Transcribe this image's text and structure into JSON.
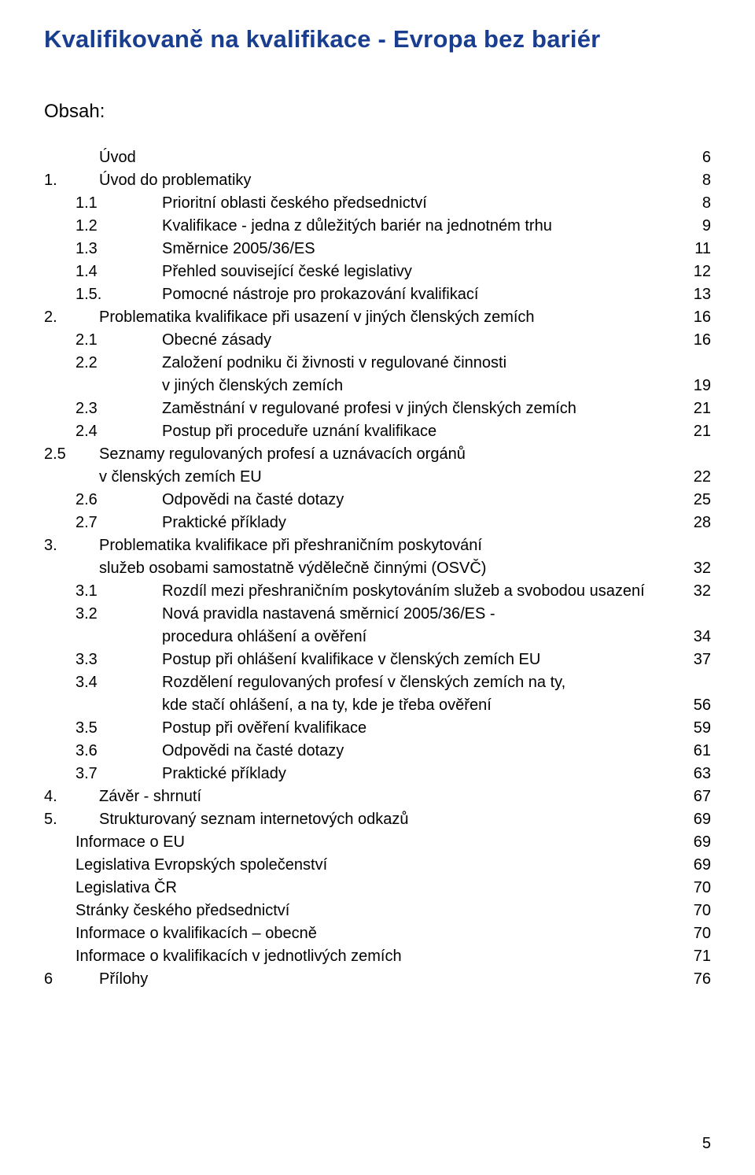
{
  "title": "Kvalifikovaně na kvalifikace - Evropa bez bariér",
  "obsah_label": "Obsah:",
  "page_number": "5",
  "colors": {
    "title_color": "#1a3e8f",
    "text_color": "#000000",
    "background": "#ffffff"
  },
  "typography": {
    "title_fontsize": 31,
    "heading_fontsize": 24,
    "body_fontsize": 20,
    "font_family": "Verdana"
  },
  "toc": [
    {
      "num": "",
      "level": "top",
      "text": "Úvod",
      "page": "6"
    },
    {
      "num": "1.",
      "level": "top",
      "text": "Úvod do problematiky",
      "page": "8"
    },
    {
      "num": "1.1",
      "level": "sub",
      "text": "Prioritní oblasti českého předsednictví",
      "page": "8"
    },
    {
      "num": "1.2",
      "level": "sub",
      "text": "Kvalifikace - jedna z důležitých bariér na jednotném trhu",
      "page": "9"
    },
    {
      "num": "1.3",
      "level": "sub",
      "text": "Směrnice 2005/36/ES",
      "page": "11"
    },
    {
      "num": "1.4",
      "level": "sub",
      "text": "Přehled související české legislativy",
      "page": "12"
    },
    {
      "num": "1.5.",
      "level": "sub",
      "text": "Pomocné nástroje pro prokazování kvalifikací",
      "page": "13"
    },
    {
      "num": "2.",
      "level": "top",
      "text": "Problematika kvalifikace při usazení v jiných členských zemích",
      "page": "16"
    },
    {
      "num": "2.1",
      "level": "sub",
      "text": "Obecné zásady",
      "page": "16"
    },
    {
      "num": "2.2",
      "level": "sub",
      "text": "Založení podniku či živnosti v regulované činnosti",
      "text2": "v jiných členských zemích",
      "page": "19"
    },
    {
      "num": "2.3",
      "level": "sub",
      "text": "Zaměstnání v regulované profesi v jiných členských zemích",
      "page": "21"
    },
    {
      "num": "2.4",
      "level": "sub",
      "text": "Postup při proceduře uznání kvalifikace",
      "page": "21"
    },
    {
      "num": "2.5",
      "level": "top",
      "text": "Seznamy regulovaných profesí a uznávacích orgánů",
      "text2": "v členských zemích EU",
      "page": "22"
    },
    {
      "num": "2.6",
      "level": "sub",
      "text": "Odpovědi na časté dotazy",
      "page": "25"
    },
    {
      "num": "2.7",
      "level": "sub",
      "text": "Praktické příklady",
      "page": "28"
    },
    {
      "num": "3.",
      "level": "top",
      "text": "Problematika kvalifikace při přeshraničním poskytování",
      "text2": "služeb osobami samostatně výdělečně činnými (OSVČ)",
      "page": "32"
    },
    {
      "num": "3.1",
      "level": "sub",
      "text": "Rozdíl mezi přeshraničním poskytováním služeb a svobodou usazení",
      "page": "32",
      "no_leader": true
    },
    {
      "num": "3.2",
      "level": "sub",
      "text": "Nová pravidla nastavená směrnicí 2005/36/ES -",
      "text2": "procedura ohlášení a ověření",
      "page": "34"
    },
    {
      "num": "3.3",
      "level": "sub",
      "text": "Postup při ohlášení kvalifikace v členských zemích EU",
      "page": "37"
    },
    {
      "num": "3.4",
      "level": "sub",
      "text": "Rozdělení regulovaných profesí v členských zemích na ty,",
      "text2": "kde stačí ohlášení, a na ty, kde je třeba ověření",
      "page": "56"
    },
    {
      "num": "3.5",
      "level": "sub",
      "text": "Postup při ověření kvalifikace",
      "page": "59"
    },
    {
      "num": "3.6",
      "level": "sub",
      "text": "Odpovědi na časté dotazy",
      "page": "61"
    },
    {
      "num": "3.7",
      "level": "sub",
      "text": "Praktické příklady",
      "page": "63"
    },
    {
      "num": "4.",
      "level": "top",
      "text": "Závěr - shrnutí",
      "page": "67"
    },
    {
      "num": "5.",
      "level": "top",
      "text": "Strukturovaný seznam internetových odkazů",
      "page": "69"
    },
    {
      "num": "",
      "level": "unnum",
      "text": "Informace o EU",
      "page": "69"
    },
    {
      "num": "",
      "level": "unnum",
      "text": "Legislativa Evropských společenství",
      "page": "69"
    },
    {
      "num": "",
      "level": "unnum",
      "text": "Legislativa ČR",
      "page": "70"
    },
    {
      "num": "",
      "level": "unnum",
      "text": "Stránky českého předsednictví",
      "page": "70"
    },
    {
      "num": "",
      "level": "unnum",
      "text": "Informace o kvalifikacích – obecně",
      "page": "70"
    },
    {
      "num": "",
      "level": "unnum",
      "text": "Informace o kvalifikacích v jednotlivých zemích",
      "page": "71"
    },
    {
      "num": "6",
      "level": "top",
      "text": "Přílohy",
      "page": "76"
    }
  ]
}
